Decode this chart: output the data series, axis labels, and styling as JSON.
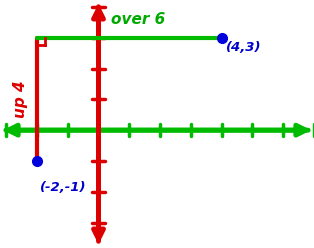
{
  "point1": [
    -2,
    -1
  ],
  "point2": [
    4,
    3
  ],
  "line_color": "#0000dd",
  "axis_color": "#00bb00",
  "tick_color": "#dd0000",
  "horiz_line_color": "#00bb00",
  "vert_line_color": "#dd0000",
  "label1": "(-2,-1)",
  "label2": "(4,3)",
  "label_up": "up 4",
  "label_over": "over 6",
  "label_color_points": "#0000cc",
  "label_color_up": "#dd0000",
  "label_color_over": "#00aa00",
  "xlim": [
    -3.2,
    7.0
  ],
  "ylim": [
    -3.8,
    4.2
  ],
  "bg_color": "#ffffff",
  "figsize": [
    3.14,
    2.48
  ],
  "dpi": 100
}
